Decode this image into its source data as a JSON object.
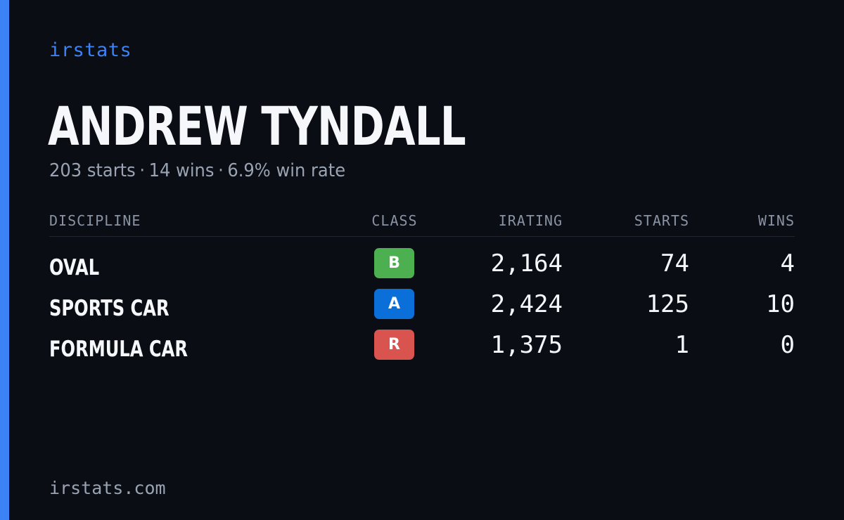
{
  "brand": "irstats",
  "driver": {
    "name": "ANDREW TYNDALL",
    "starts_text": "203 starts",
    "wins_text": "14 wins",
    "win_rate_text": "6.9% win rate",
    "separator": "·"
  },
  "table": {
    "headers": {
      "discipline": "DISCIPLINE",
      "class": "CLASS",
      "irating": "IRATING",
      "starts": "STARTS",
      "wins": "WINS"
    },
    "rows": [
      {
        "discipline": "OVAL",
        "class": "B",
        "class_color": "#4caf50",
        "irating": "2,164",
        "starts": "74",
        "wins": "4"
      },
      {
        "discipline": "SPORTS CAR",
        "class": "A",
        "class_color": "#0a6fd8",
        "irating": "2,424",
        "starts": "125",
        "wins": "10"
      },
      {
        "discipline": "FORMULA CAR",
        "class": "R",
        "class_color": "#d9534f",
        "irating": "1,375",
        "starts": "1",
        "wins": "0"
      }
    ]
  },
  "footer": {
    "url": "irstats.com"
  },
  "colors": {
    "accent": "#3b82f6",
    "background": "#0a0d14"
  }
}
